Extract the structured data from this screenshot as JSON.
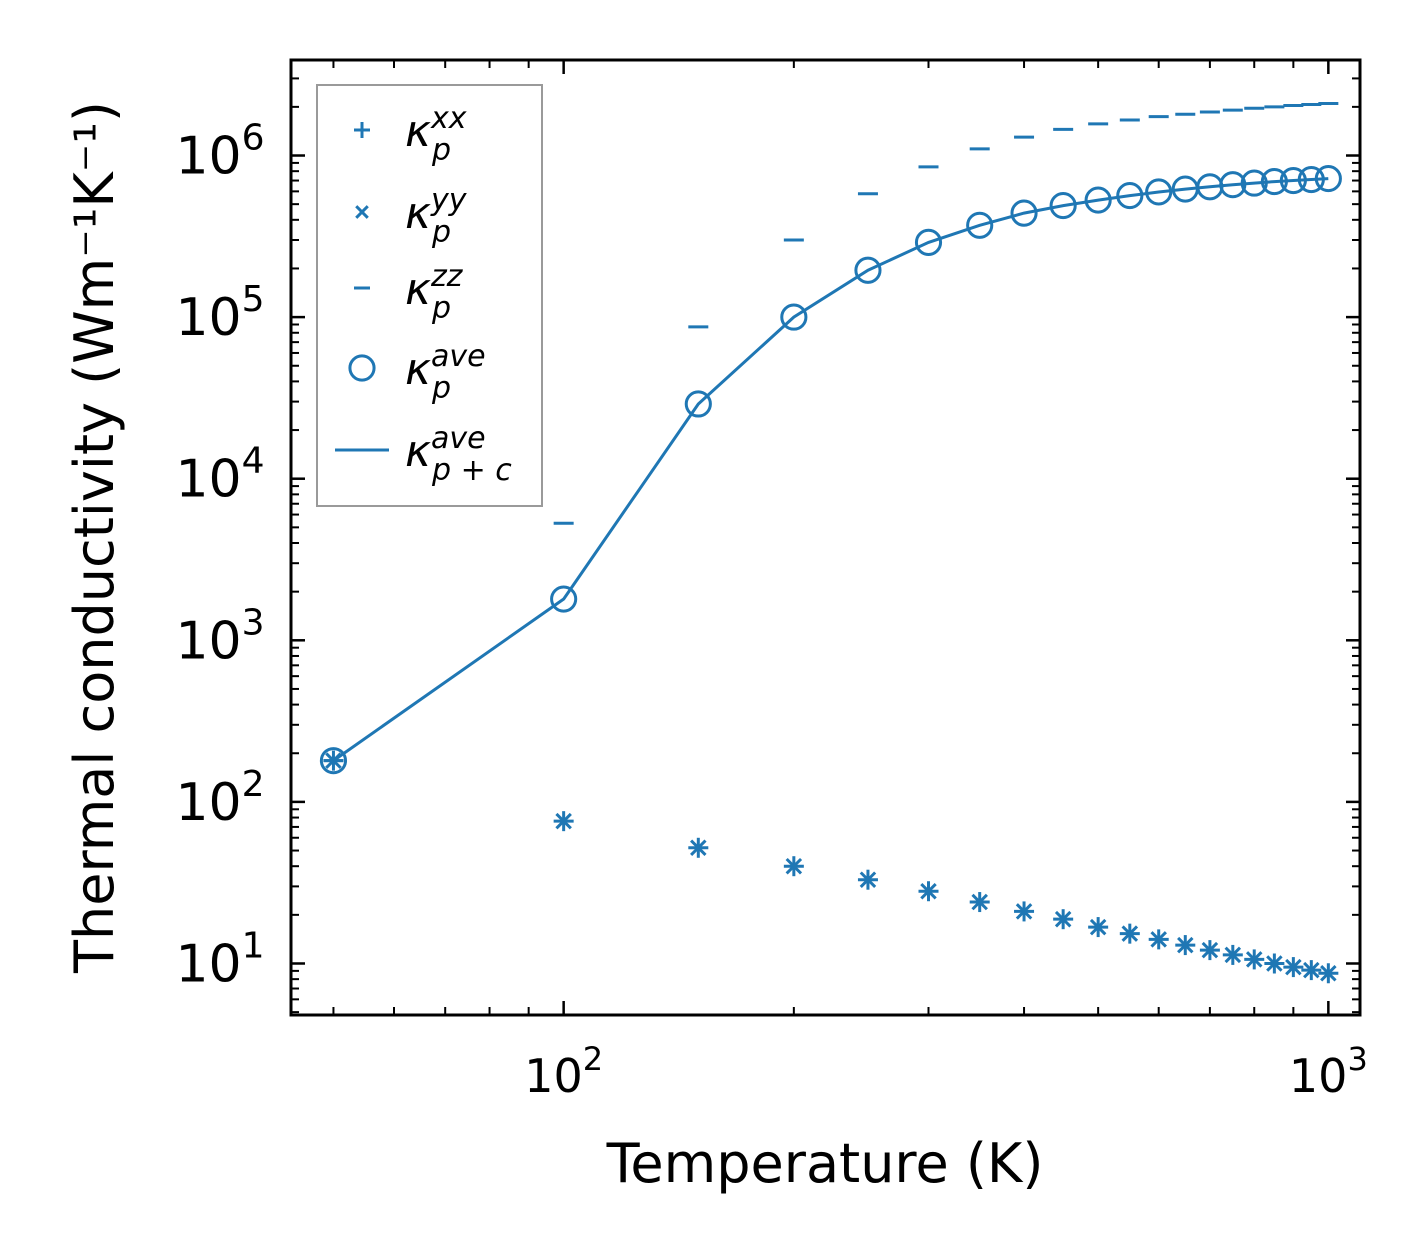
{
  "chart_data": {
    "type": "scatter",
    "title": "",
    "xlabel": "Temperature (K)",
    "ylabel": "Thermal conductivity (Wm⁻¹K⁻¹)",
    "xscale": "log",
    "yscale": "log",
    "xlim": [
      44,
      1100
    ],
    "ylim": [
      4.8,
      3900000
    ],
    "x_ticks": [
      {
        "value": 100,
        "base": "10",
        "exp": "2"
      },
      {
        "value": 1000,
        "base": "10",
        "exp": "3"
      }
    ],
    "y_ticks": [
      {
        "value": 10,
        "base": "10",
        "exp": "1"
      },
      {
        "value": 100,
        "base": "10",
        "exp": "2"
      },
      {
        "value": 1000,
        "base": "10",
        "exp": "3"
      },
      {
        "value": 10000,
        "base": "10",
        "exp": "4"
      },
      {
        "value": 100000,
        "base": "10",
        "exp": "5"
      },
      {
        "value": 1000000,
        "base": "10",
        "exp": "6"
      }
    ],
    "color": "#1f77b4",
    "legend_position": "top-left",
    "x": [
      50,
      100,
      150,
      200,
      250,
      300,
      350,
      400,
      450,
      500,
      550,
      600,
      650,
      700,
      750,
      800,
      850,
      900,
      950,
      1000
    ],
    "series": [
      {
        "name": "kappa_p^xx",
        "marker": "plus",
        "legend": {
          "base": "κ",
          "sup": "xx",
          "sub": "p"
        },
        "values": [
          180,
          76,
          52,
          40,
          33,
          28,
          24,
          21,
          18.8,
          16.8,
          15.3,
          14.1,
          13,
          12.1,
          11.3,
          10.6,
          10,
          9.5,
          9.1,
          8.7
        ]
      },
      {
        "name": "kappa_p^yy",
        "marker": "x",
        "legend": {
          "base": "κ",
          "sup": "yy",
          "sub": "p"
        },
        "values": [
          180,
          76,
          52,
          40,
          33,
          28,
          24,
          21,
          18.8,
          16.8,
          15.3,
          14.1,
          13,
          12.1,
          11.3,
          10.6,
          10,
          9.5,
          9.1,
          8.7
        ]
      },
      {
        "name": "kappa_p^zz",
        "marker": "hline",
        "legend": {
          "base": "κ",
          "sup": "zz",
          "sub": "p"
        },
        "values": [
          180,
          5300,
          87000,
          300000,
          580000,
          850000,
          1100000,
          1300000,
          1450000,
          1570000,
          1660000,
          1740000,
          1800000,
          1860000,
          1910000,
          1960000,
          2000000,
          2040000,
          2070000,
          2100000
        ]
      },
      {
        "name": "kappa_p^ave",
        "marker": "circle",
        "legend": {
          "base": "κ",
          "sup": "ave",
          "sub": "p"
        },
        "values": [
          180,
          1800,
          29000,
          100000,
          195000,
          290000,
          370000,
          440000,
          490000,
          530000,
          565000,
          595000,
          620000,
          640000,
          660000,
          675000,
          690000,
          700000,
          710000,
          720000
        ]
      },
      {
        "name": "kappa_p+c^ave",
        "marker": "line",
        "legend": {
          "base": "κ",
          "sup": "ave",
          "sub": "p + c"
        },
        "values": [
          180,
          1800,
          29000,
          100000,
          195000,
          290000,
          370000,
          440000,
          490000,
          530000,
          565000,
          595000,
          620000,
          640000,
          660000,
          675000,
          690000,
          700000,
          710000,
          720000
        ]
      }
    ]
  }
}
